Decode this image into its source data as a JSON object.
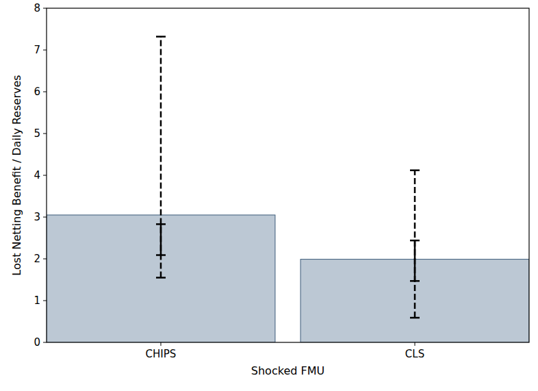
{
  "chart_data": {
    "type": "bar",
    "x_label": "Shocked FMU",
    "y_label": "Lost Netting Benefit / Daily Reserves",
    "categories": [
      "CHIPS",
      "CLS"
    ],
    "values": [
      3.05,
      1.99
    ],
    "color": "#bcc8d4",
    "ci_inner": [
      [
        2.09,
        2.83
      ],
      [
        1.47,
        2.44
      ]
    ],
    "ci_outer": [
      [
        1.55,
        7.32
      ],
      [
        0.59,
        4.12
      ]
    ],
    "ylim": [
      0,
      8
    ],
    "yticks": [
      0,
      1,
      2,
      3,
      4,
      5,
      6,
      7,
      8
    ],
    "grid": false
  }
}
